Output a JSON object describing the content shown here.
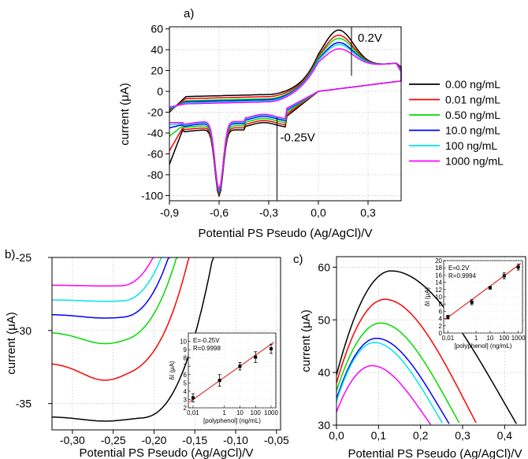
{
  "colors": [
    "#000000",
    "#ff0000",
    "#00dd00",
    "#0000ff",
    "#00e5ee",
    "#ff00ff"
  ],
  "legend_labels": [
    "0.00 ng/mL",
    "0.01 ng/mL",
    "0.50 ng/mL",
    "10.0 ng/mL",
    "100 ng/mL",
    "1000 ng/mL"
  ],
  "chart_data": [
    {
      "id": "a",
      "panel_label": "a)",
      "type": "line",
      "xlabel": "Potential PS Pseudo (Ag/AgCl)/V",
      "ylabel": "current (μA)",
      "xlim": [
        -0.9,
        0.5
      ],
      "ylim": [
        -105,
        62
      ],
      "xticks": [
        -0.9,
        -0.6,
        -0.3,
        0.0,
        0.3
      ],
      "xtick_labels": [
        "-0,9",
        "-0,6",
        "-0,3",
        "0,0",
        "0,3"
      ],
      "yticks": [
        -100,
        -80,
        -60,
        -40,
        -20,
        0,
        20,
        40,
        60
      ],
      "ytick_labels": [
        "-100",
        "-80",
        "-60",
        "-40",
        "-20",
        "0",
        "20",
        "40",
        "60"
      ],
      "legend_position": "right",
      "annotations": [
        {
          "text": "0.2V",
          "x": 0.2
        },
        {
          "text": "-0.25V",
          "x": -0.25
        }
      ],
      "series_params": [
        {
          "pa": 59,
          "pc": -100,
          "up": -5,
          "lo": -35,
          "ua": -20,
          "ur": 24,
          "la": -70,
          "lr": 28,
          "wd": -37
        },
        {
          "pa": 54,
          "pc": -98,
          "up": -7,
          "lo": -33,
          "ua": -19,
          "ur": 23,
          "la": -57,
          "lr": 26,
          "wd": -35
        },
        {
          "pa": 51,
          "pc": -97,
          "up": -9,
          "lo": -31,
          "ua": -18,
          "ur": 22,
          "la": -43,
          "lr": 24,
          "wd": -33
        },
        {
          "pa": 47,
          "pc": -96,
          "up": -10,
          "lo": -29,
          "ua": -17,
          "ur": 21,
          "la": -35,
          "lr": 22,
          "wd": -32
        },
        {
          "pa": 45,
          "pc": -95,
          "up": -11,
          "lo": -28,
          "ua": -16,
          "ur": 20,
          "la": -32,
          "lr": 21,
          "wd": -31
        },
        {
          "pa": 41,
          "pc": -94,
          "up": -12,
          "lo": -27,
          "ua": -15,
          "ur": 19,
          "la": -30,
          "lr": 20,
          "wd": -30
        }
      ]
    },
    {
      "id": "b",
      "panel_label": "b)",
      "type": "line",
      "xlabel": "Potential PS Pseudo (Ag/AgCl)/V",
      "ylabel": "current (μA)",
      "xlim": [
        -0.325,
        -0.045
      ],
      "ylim": [
        -36.8,
        -25
      ],
      "xticks": [
        -0.3,
        -0.25,
        -0.2,
        -0.15,
        -0.1,
        -0.05
      ],
      "xtick_labels": [
        "-0,30",
        "-0,25",
        "-0,20",
        "-0,15",
        "-0,10",
        "-0,05"
      ],
      "yticks": [
        -35,
        -30,
        -25
      ],
      "ytick_labels": [
        "-35",
        "-30",
        "-25"
      ],
      "series": [
        {
          "plateau": -35.9,
          "dip": -0.3,
          "xr": -0.175
        },
        {
          "plateau": -32.2,
          "dip": -1.2,
          "xr": -0.19
        },
        {
          "plateau": -30.1,
          "dip": -0.8,
          "xr": -0.195
        },
        {
          "plateau": -28.9,
          "dip": -0.25,
          "xr": -0.198
        },
        {
          "plateau": -27.9,
          "dip": -0.1,
          "xr": -0.2
        },
        {
          "plateau": -26.9,
          "dip": -0.05,
          "xr": -0.202
        }
      ],
      "inset": {
        "type": "scatter",
        "xlabel": "[polyphenol] (ng/mL)",
        "ylabel": "δI (μA)",
        "xscale": "log",
        "xlim": [
          0.005,
          2000
        ],
        "ylim": [
          2,
          11
        ],
        "xticks": [
          0.01,
          1,
          10,
          100,
          1000
        ],
        "xtick_labels": [
          "0,01",
          "1",
          "10",
          "100",
          "1000"
        ],
        "yticks": [
          2,
          3,
          4,
          5,
          6,
          7,
          8,
          9,
          10
        ],
        "ytick_labels": [
          "2",
          "3",
          "4",
          "5",
          "6",
          "7",
          "8",
          "9",
          "10"
        ],
        "annotation_lines": [
          "E=-0.25V",
          "R=0.9998"
        ],
        "points": [
          {
            "x": 0.01,
            "y": 3.2,
            "err": 0.5
          },
          {
            "x": 0.5,
            "y": 5.3,
            "err": 0.7
          },
          {
            "x": 10,
            "y": 7.0,
            "err": 0.45
          },
          {
            "x": 100,
            "y": 8.1,
            "err": 0.65
          },
          {
            "x": 1000,
            "y": 9.1,
            "err": 0.55
          }
        ],
        "fit": {
          "x": [
            0.006,
            1500
          ],
          "y": [
            2.7,
            9.9
          ]
        }
      }
    },
    {
      "id": "c",
      "panel_label": "c)",
      "type": "line",
      "xlabel": "Potential PS Pseudo (Ag/AgCl)/V",
      "ylabel": "current (μA)",
      "xlim": [
        0.0,
        0.45
      ],
      "ylim": [
        30,
        62
      ],
      "xticks": [
        0.0,
        0.1,
        0.2,
        0.3,
        0.4
      ],
      "xtick_labels": [
        "0,0",
        "0,1",
        "0,2",
        "0,3",
        "0,4"
      ],
      "yticks": [
        30,
        40,
        50,
        60
      ],
      "ytick_labels": [
        "30",
        "40",
        "50",
        "60"
      ],
      "series": [
        {
          "y0": 39.5,
          "xp": 0.13,
          "yp": 59.3,
          "x30": 0.43
        },
        {
          "y0": 38.0,
          "xp": 0.115,
          "yp": 53.9,
          "x30": 0.335
        },
        {
          "y0": 36.5,
          "xp": 0.105,
          "yp": 49.4,
          "x30": 0.295
        },
        {
          "y0": 35.0,
          "xp": 0.095,
          "yp": 46.5,
          "x30": 0.27
        },
        {
          "y0": 34.5,
          "xp": 0.09,
          "yp": 45.7,
          "x30": 0.255
        },
        {
          "y0": 32.5,
          "xp": 0.085,
          "yp": 41.3,
          "x30": 0.225
        }
      ],
      "inset": {
        "type": "scatter",
        "xlabel": "[polyphenol] (ng/mL)",
        "ylabel": "δI (μA)",
        "xscale": "log",
        "xlim": [
          0.005,
          2000
        ],
        "ylim": [
          0,
          20
        ],
        "xticks": [
          0.01,
          1,
          10,
          100,
          1000
        ],
        "xtick_labels": [
          "0,01",
          "1",
          "10",
          "100",
          "1000"
        ],
        "yticks": [
          0,
          2,
          4,
          6,
          8,
          10,
          12,
          14,
          16,
          18,
          20
        ],
        "ytick_labels": [
          "0",
          "2",
          "4",
          "6",
          "8",
          "10",
          "12",
          "14",
          "16",
          "18",
          "20"
        ],
        "annotation_lines": [
          "E=0.2V",
          "R=0.9994"
        ],
        "points": [
          {
            "x": 0.01,
            "y": 4.4,
            "err": 0.5
          },
          {
            "x": 0.5,
            "y": 8.5,
            "err": 0.7
          },
          {
            "x": 10,
            "y": 12.5,
            "err": 0.4
          },
          {
            "x": 100,
            "y": 15.8,
            "err": 0.8
          },
          {
            "x": 1000,
            "y": 18.2,
            "err": 0.8
          }
        ],
        "fit": {
          "x": [
            0.006,
            1500
          ],
          "y": [
            3.7,
            19.2
          ]
        }
      }
    }
  ]
}
